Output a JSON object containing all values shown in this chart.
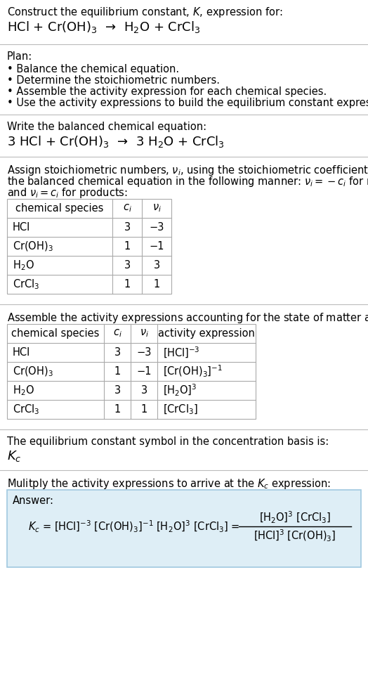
{
  "bg_color": "#ffffff",
  "text_color": "#000000",
  "section_bg": "#deeef6",
  "title_line1": "Construct the equilibrium constant, $K$, expression for:",
  "title_line2": "HCl + Cr(OH)$_3$  →  H$_2$O + CrCl$_3$",
  "plan_header": "Plan:",
  "plan_bullets": [
    "• Balance the chemical equation.",
    "• Determine the stoichiometric numbers.",
    "• Assemble the activity expression for each chemical species.",
    "• Use the activity expressions to build the equilibrium constant expression."
  ],
  "balanced_header": "Write the balanced chemical equation:",
  "balanced_eq": "3 HCl + Cr(OH)$_3$  →  3 H$_2$O + CrCl$_3$",
  "stoich_line1": "Assign stoichiometric numbers, $\\nu_i$, using the stoichiometric coefficients, $c_i$, from",
  "stoich_line2": "the balanced chemical equation in the following manner: $\\nu_i = -c_i$ for reactants",
  "stoich_line3": "and $\\nu_i = c_i$ for products:",
  "table1_headers": [
    "chemical species",
    "$c_i$",
    "$\\nu_i$"
  ],
  "table1_rows": [
    [
      "HCl",
      "3",
      "−3"
    ],
    [
      "Cr(OH)$_3$",
      "1",
      "−1"
    ],
    [
      "H$_2$O",
      "3",
      "3"
    ],
    [
      "CrCl$_3$",
      "1",
      "1"
    ]
  ],
  "assemble_header": "Assemble the activity expressions accounting for the state of matter and $\\nu_i$:",
  "table2_headers": [
    "chemical species",
    "$c_i$",
    "$\\nu_i$",
    "activity expression"
  ],
  "table2_rows": [
    [
      "HCl",
      "3",
      "−3",
      "[HCl]$^{-3}$"
    ],
    [
      "Cr(OH)$_3$",
      "1",
      "−1",
      "[Cr(OH)$_3$]$^{-1}$"
    ],
    [
      "H$_2$O",
      "3",
      "3",
      "[H$_2$O]$^3$"
    ],
    [
      "CrCl$_3$",
      "1",
      "1",
      "[CrCl$_3$]"
    ]
  ],
  "kc_header": "The equilibrium constant symbol in the concentration basis is:",
  "kc_symbol": "$K_c$",
  "multiply_header": "Mulitply the activity expressions to arrive at the $K_c$ expression:",
  "answer_label": "Answer:",
  "font_size": 11,
  "small_font": 10.5,
  "line_color": "#bbbbbb",
  "table_line_color": "#aaaaaa",
  "answer_border": "#a0c8e0"
}
